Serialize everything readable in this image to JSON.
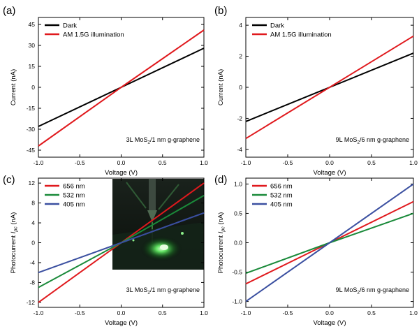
{
  "chart_data": [
    {
      "panel_label": "(a)",
      "type": "line",
      "xlabel": "Voltage (V)",
      "ylabel": "Current (nA)",
      "xlim": [
        -1.0,
        1.0
      ],
      "ylim": [
        -50,
        50
      ],
      "xticks": [
        "-1.0",
        "-0.5",
        "0.0",
        "0.5",
        "1.0"
      ],
      "yticks": [
        "-45",
        "-30",
        "-15",
        "0",
        "15",
        "30",
        "45"
      ],
      "xtick_values": [
        -1.0,
        -0.5,
        0.0,
        0.5,
        1.0
      ],
      "ytick_values": [
        -45,
        -30,
        -15,
        0,
        15,
        30,
        45
      ],
      "annotation": "3L MoS2/1 nm g-graphene",
      "annotation_main": "3L MoS",
      "annotation_sub": "2",
      "annotation_tail": "/1 nm g-graphene",
      "legend_position": "top-left",
      "series": [
        {
          "name": "Dark",
          "color": "#000000",
          "x": [
            -1.0,
            0.0,
            1.0
          ],
          "y": [
            -28,
            0,
            28
          ]
        },
        {
          "name": "AM 1.5G illumination",
          "color": "#e0191d",
          "x": [
            -1.0,
            0.0,
            1.0
          ],
          "y": [
            -42,
            0,
            41
          ]
        }
      ]
    },
    {
      "panel_label": "(b)",
      "type": "line",
      "xlabel": "Voltage (V)",
      "ylabel": "Current (nA)",
      "xlim": [
        -1.0,
        1.0
      ],
      "ylim": [
        -4.5,
        4.5
      ],
      "xticks": [
        "-1.0",
        "-0.5",
        "0.0",
        "0.5",
        "1.0"
      ],
      "yticks": [
        "-4",
        "-2",
        "0",
        "2",
        "4"
      ],
      "xtick_values": [
        -1.0,
        -0.5,
        0.0,
        0.5,
        1.0
      ],
      "ytick_values": [
        -4,
        -2,
        0,
        2,
        4
      ],
      "annotation": "9L MoS2/6 nm g-graphene",
      "annotation_main": "9L MoS",
      "annotation_sub": "2",
      "annotation_tail": "/6 nm g-graphene",
      "legend_position": "top-left",
      "series": [
        {
          "name": "Dark",
          "color": "#000000",
          "x": [
            -1.0,
            0.0,
            1.0
          ],
          "y": [
            -2.2,
            0,
            2.2
          ]
        },
        {
          "name": "AM 1.5G illumination",
          "color": "#e0191d",
          "x": [
            -1.0,
            0.0,
            1.0
          ],
          "y": [
            -3.3,
            0,
            3.3
          ]
        }
      ]
    },
    {
      "panel_label": "(c)",
      "type": "line",
      "xlabel": "Voltage (V)",
      "ylabel": "Photocurrent I_pc (nA)",
      "ylabel_main": "Photocurrent ",
      "ylabel_italic": "I",
      "ylabel_sub": "pc",
      "ylabel_tail": " (nA)",
      "xlim": [
        -1.0,
        1.0
      ],
      "ylim": [
        -13,
        13
      ],
      "xticks": [
        "-1.0",
        "-0.5",
        "0.0",
        "0.5",
        "1.0"
      ],
      "yticks": [
        "-12",
        "-8",
        "-4",
        "0",
        "4",
        "8",
        "12"
      ],
      "xtick_values": [
        -1.0,
        -0.5,
        0.0,
        0.5,
        1.0
      ],
      "ytick_values": [
        -12,
        -8,
        -4,
        0,
        4,
        8,
        12
      ],
      "annotation": "3L MoS2/1 nm g-graphene",
      "annotation_main": "3L MoS",
      "annotation_sub": "2",
      "annotation_tail": "/1 nm g-graphene",
      "legend_position": "top-left",
      "inset": "photograph of illuminated device (green laser spot)",
      "series": [
        {
          "name": "656 nm",
          "color": "#e0191d",
          "x": [
            -1.0,
            0.0,
            1.0
          ],
          "y": [
            -12,
            0,
            12
          ]
        },
        {
          "name": "532 nm",
          "color": "#1a8a3a",
          "x": [
            -1.0,
            0.0,
            1.0
          ],
          "y": [
            -9,
            0,
            9.5
          ]
        },
        {
          "name": "405 nm",
          "color": "#3a4fa0",
          "x": [
            -1.0,
            0.0,
            1.0
          ],
          "y": [
            -6,
            0,
            6
          ]
        }
      ]
    },
    {
      "panel_label": "(d)",
      "type": "line",
      "xlabel": "Voltage (V)",
      "ylabel": "Photocurrent I_pc (nA)",
      "ylabel_main": "Photocurrent ",
      "ylabel_italic": "I",
      "ylabel_sub": "pc",
      "ylabel_tail": " (nA)",
      "xlim": [
        -1.0,
        1.0
      ],
      "ylim": [
        -1.1,
        1.1
      ],
      "xticks": [
        "-1.0",
        "-0.5",
        "0.0",
        "0.5",
        "1.0"
      ],
      "yticks": [
        "-1.0",
        "-0.5",
        "0.0",
        "0.5",
        "1.0"
      ],
      "xtick_values": [
        -1.0,
        -0.5,
        0.0,
        0.5,
        1.0
      ],
      "ytick_values": [
        -1.0,
        -0.5,
        0.0,
        0.5,
        1.0
      ],
      "annotation": "9L MoS2/6 nm g-graphene",
      "annotation_main": "9L MoS",
      "annotation_sub": "2",
      "annotation_tail": "/6 nm g-graphene",
      "legend_position": "top-left",
      "series": [
        {
          "name": "656 nm",
          "color": "#e0191d",
          "x": [
            -1.0,
            0.0,
            1.0
          ],
          "y": [
            -0.7,
            0,
            0.7
          ]
        },
        {
          "name": "532 nm",
          "color": "#1a8a3a",
          "x": [
            -1.0,
            0.0,
            1.0
          ],
          "y": [
            -0.52,
            0,
            0.5
          ]
        },
        {
          "name": "405 nm",
          "color": "#3a4fa0",
          "x": [
            -1.0,
            0.0,
            1.0
          ],
          "y": [
            -1.0,
            0,
            1.0
          ]
        }
      ]
    }
  ]
}
